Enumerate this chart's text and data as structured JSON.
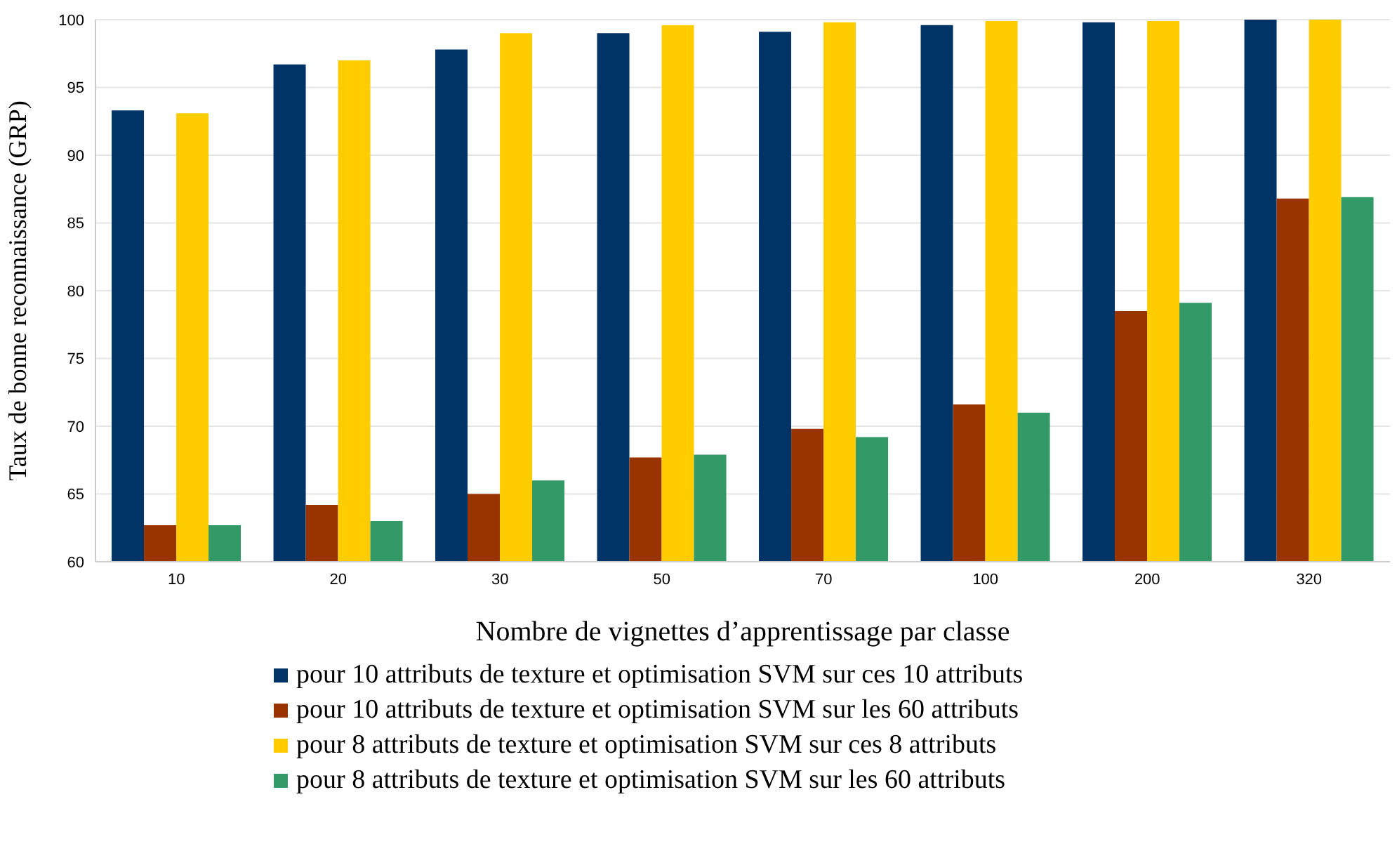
{
  "chart_data": {
    "type": "bar",
    "xlabel": "Nombre de vignettes d’apprentissage par classe",
    "ylabel": "Taux de bonne reconnaissance (GRP)",
    "categories": [
      "10",
      "20",
      "30",
      "50",
      "70",
      "100",
      "200",
      "320"
    ],
    "series": [
      {
        "name": "pour 10 attributs de texture et optimisation SVM sur ces 10 attributs",
        "color": "#003366",
        "values": [
          93.3,
          96.7,
          97.8,
          99.0,
          99.1,
          99.6,
          99.8,
          100
        ]
      },
      {
        "name": "pour 10 attributs de texture et optimisation SVM sur les 60 attributs",
        "color": "#993300",
        "values": [
          62.7,
          64.2,
          65.0,
          67.7,
          69.8,
          71.6,
          78.5,
          86.8
        ]
      },
      {
        "name": "pour 8 attributs de texture et optimisation SVM sur ces 8 attributs",
        "color": "#ffcc00",
        "values": [
          93.1,
          97.0,
          99.0,
          99.6,
          99.8,
          99.9,
          99.9,
          100
        ]
      },
      {
        "name": "pour 8 attributs de texture et optimisation SVM sur les 60 attributs",
        "color": "#339966",
        "values": [
          62.7,
          63.0,
          66.0,
          67.9,
          69.2,
          71.0,
          79.1,
          86.9
        ]
      }
    ],
    "ylim": [
      60,
      100
    ],
    "yticks": [
      60,
      65,
      70,
      75,
      80,
      85,
      90,
      95,
      100
    ],
    "grid": "y",
    "legend": "bottom"
  }
}
